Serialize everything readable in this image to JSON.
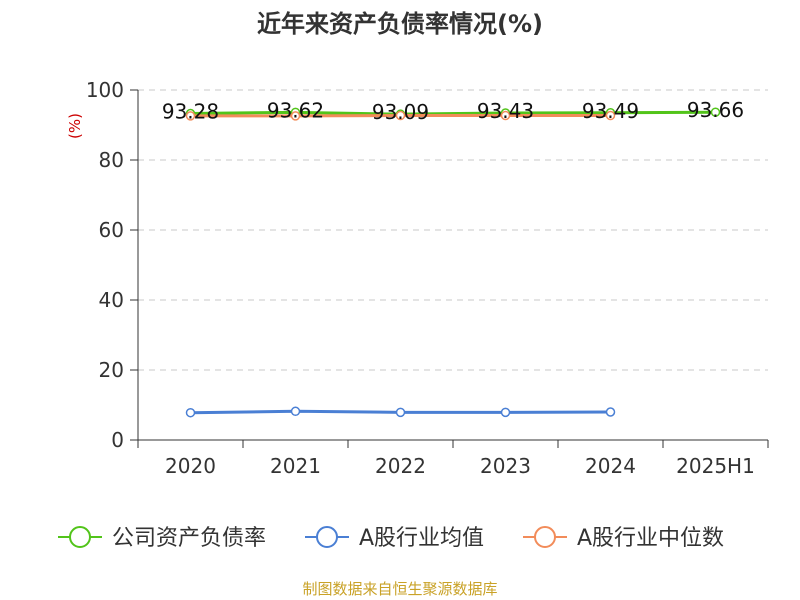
{
  "chart_data": {
    "type": "line",
    "title": "近年来资产负债率情况(%)",
    "y_unit": "(%)",
    "categories": [
      "2020",
      "2021",
      "2022",
      "2023",
      "2024",
      "2025H1"
    ],
    "ylim": [
      0,
      100
    ],
    "yticks": [
      0,
      20,
      40,
      60,
      80,
      100
    ],
    "grid": true,
    "legend_position": "bottom",
    "series": [
      {
        "name": "公司资产负债率",
        "color": "#52c41a",
        "values": [
          93.28,
          93.62,
          93.09,
          93.43,
          93.49,
          93.66
        ],
        "labels": [
          "93.28",
          "93.62",
          "93.09",
          "93.43",
          "93.49",
          "93.66"
        ]
      },
      {
        "name": "A股行业均值",
        "color": "#4a7fd4",
        "values": [
          7.8,
          8.2,
          7.9,
          7.9,
          8.0,
          null
        ]
      },
      {
        "name": "A股行业中位数",
        "color": "#f28c5a",
        "values": [
          92.6,
          92.6,
          92.7,
          92.7,
          92.7,
          null
        ]
      }
    ],
    "source": "制图数据来自恒生聚源数据库"
  }
}
